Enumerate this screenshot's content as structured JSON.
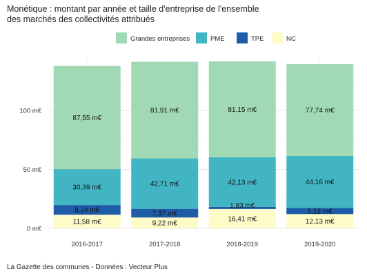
{
  "title_line1": "Monétique : montant par année et taille d'entreprise de l'ensemble",
  "title_line2": "des marchés des collectivités attribués",
  "source": "La Gazette des communes - Données : Vecteur Plus",
  "chart_data": {
    "type": "bar",
    "stacked": true,
    "categories": [
      "2016-2017",
      "2017-2018",
      "2018-2019",
      "2019-2020"
    ],
    "series": [
      {
        "name": "NC",
        "color": "#fdfcc9",
        "values": [
          11.58,
          9.22,
          16.41,
          12.13
        ],
        "labels": [
          "11,58 m€",
          "9,22 m€",
          "16,41 m€",
          "12,13 m€"
        ]
      },
      {
        "name": "TPE",
        "color": "#1f5ca8",
        "values": [
          8.24,
          7.37,
          1.83,
          5.12
        ],
        "labels": [
          "8,24 m€",
          "7,37 m€",
          "1,83 m€",
          "5,12 m€"
        ]
      },
      {
        "name": "PME",
        "color": "#41b5c4",
        "values": [
          30.39,
          42.71,
          42.13,
          44.16
        ],
        "labels": [
          "30,39 m€",
          "42,71 m€",
          "42,13 m€",
          "44,16 m€"
        ]
      },
      {
        "name": "Grandes entreprises",
        "color": "#a2d9b5",
        "values": [
          87.55,
          81.91,
          81.15,
          77.74
        ],
        "labels": [
          "87,55 m€",
          "81,91 m€",
          "81,15 m€",
          "77,74 m€"
        ]
      }
    ],
    "legend_order": [
      "Grandes entreprises",
      "PME",
      "TPE",
      "NC"
    ],
    "legend_position": "top",
    "y_ticks": [
      0,
      50,
      100
    ],
    "y_tick_labels": [
      "0 m€",
      "50 m€",
      "100 m€"
    ],
    "ylim": [
      0,
      145
    ],
    "grid": true
  }
}
